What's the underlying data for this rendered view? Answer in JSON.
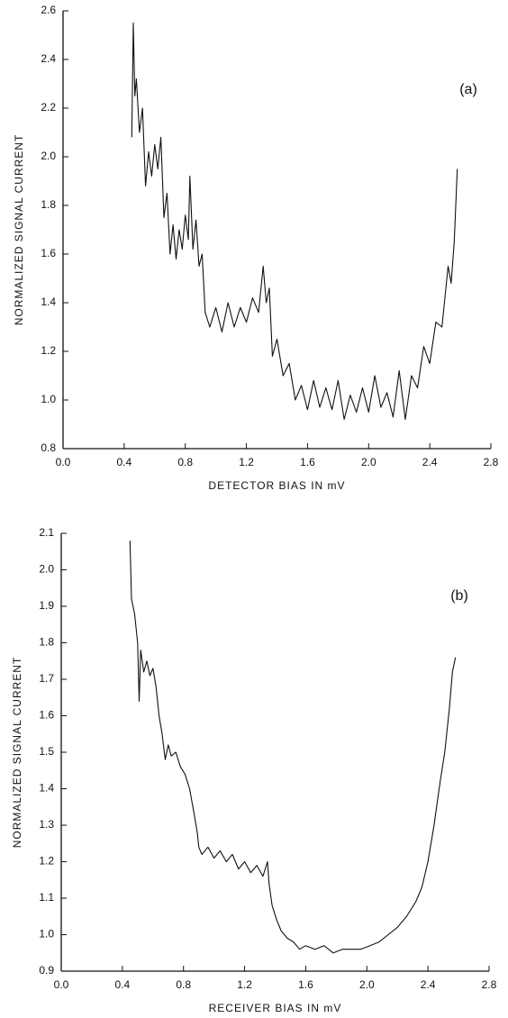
{
  "chart_data": [
    {
      "type": "line",
      "annotation": "(a)",
      "xlabel": "DETECTOR BIAS IN mV",
      "ylabel": "NORMALIZED SIGNAL CURRENT",
      "color": "#111111",
      "xlim": [
        0,
        2.8
      ],
      "ylim": [
        0.8,
        2.6
      ],
      "xticks": [
        {
          "value": 0,
          "label": "0.0"
        },
        0.4,
        0.8,
        1.2,
        1.6,
        {
          "value": 2,
          "label": "2.0"
        },
        2.4,
        2.8
      ],
      "yticks": [
        0.8,
        {
          "value": 1,
          "label": "1.0"
        },
        1.2,
        1.4,
        1.6,
        1.8,
        {
          "value": 2,
          "label": "2.0"
        },
        2.2,
        2.4,
        2.6
      ],
      "x": [
        0.45,
        0.46,
        0.47,
        0.48,
        0.5,
        0.52,
        0.54,
        0.56,
        0.58,
        0.6,
        0.62,
        0.64,
        0.66,
        0.68,
        0.7,
        0.72,
        0.74,
        0.76,
        0.78,
        0.8,
        0.82,
        0.83,
        0.85,
        0.87,
        0.89,
        0.91,
        0.93,
        0.96,
        1.0,
        1.04,
        1.08,
        1.12,
        1.16,
        1.2,
        1.24,
        1.28,
        1.31,
        1.33,
        1.35,
        1.37,
        1.4,
        1.44,
        1.48,
        1.52,
        1.56,
        1.6,
        1.64,
        1.68,
        1.72,
        1.76,
        1.8,
        1.84,
        1.88,
        1.92,
        1.96,
        2.0,
        2.04,
        2.08,
        2.12,
        2.16,
        2.2,
        2.24,
        2.28,
        2.32,
        2.36,
        2.4,
        2.44,
        2.48,
        2.52,
        2.54,
        2.56,
        2.58
      ],
      "values": [
        2.08,
        2.55,
        2.25,
        2.32,
        2.1,
        2.2,
        1.88,
        2.02,
        1.92,
        2.05,
        1.95,
        2.08,
        1.75,
        1.85,
        1.6,
        1.72,
        1.58,
        1.7,
        1.62,
        1.76,
        1.66,
        1.92,
        1.62,
        1.74,
        1.55,
        1.6,
        1.36,
        1.3,
        1.38,
        1.28,
        1.4,
        1.3,
        1.38,
        1.32,
        1.42,
        1.36,
        1.55,
        1.4,
        1.46,
        1.18,
        1.25,
        1.1,
        1.15,
        1.0,
        1.06,
        0.96,
        1.08,
        0.97,
        1.05,
        0.96,
        1.08,
        0.92,
        1.02,
        0.95,
        1.05,
        0.95,
        1.1,
        0.97,
        1.03,
        0.93,
        1.12,
        0.92,
        1.1,
        1.05,
        1.22,
        1.15,
        1.32,
        1.3,
        1.55,
        1.48,
        1.65,
        1.95
      ]
    },
    {
      "type": "line",
      "annotation": "(b)",
      "xlabel": "RECEIVER BIAS IN mV",
      "ylabel": "NORMALIZED SIGNAL CURRENT",
      "color": "#111111",
      "xlim": [
        0,
        2.8
      ],
      "ylim": [
        0.9,
        2.1
      ],
      "xticks": [
        {
          "value": 0,
          "label": "0.0"
        },
        0.4,
        0.8,
        1.2,
        1.6,
        {
          "value": 2,
          "label": "2.0"
        },
        2.4,
        2.8
      ],
      "yticks": [
        0.9,
        {
          "value": 1,
          "label": "1.0"
        },
        1.1,
        1.2,
        1.3,
        1.4,
        1.5,
        1.6,
        1.7,
        1.8,
        1.9,
        {
          "value": 2,
          "label": "2.0"
        },
        2.1
      ],
      "x": [
        0.45,
        0.46,
        0.48,
        0.5,
        0.51,
        0.52,
        0.54,
        0.56,
        0.58,
        0.6,
        0.62,
        0.64,
        0.66,
        0.68,
        0.7,
        0.72,
        0.75,
        0.78,
        0.81,
        0.84,
        0.87,
        0.89,
        0.9,
        0.92,
        0.96,
        1.0,
        1.04,
        1.08,
        1.12,
        1.16,
        1.2,
        1.24,
        1.28,
        1.32,
        1.35,
        1.36,
        1.38,
        1.41,
        1.44,
        1.48,
        1.52,
        1.56,
        1.6,
        1.66,
        1.72,
        1.78,
        1.84,
        1.9,
        1.96,
        2.02,
        2.08,
        2.14,
        2.2,
        2.26,
        2.32,
        2.36,
        2.4,
        2.44,
        2.48,
        2.51,
        2.54,
        2.56,
        2.58
      ],
      "values": [
        2.08,
        1.92,
        1.88,
        1.8,
        1.64,
        1.78,
        1.72,
        1.75,
        1.71,
        1.73,
        1.68,
        1.6,
        1.55,
        1.48,
        1.52,
        1.49,
        1.5,
        1.46,
        1.44,
        1.4,
        1.33,
        1.28,
        1.24,
        1.22,
        1.24,
        1.21,
        1.23,
        1.2,
        1.22,
        1.18,
        1.2,
        1.17,
        1.19,
        1.16,
        1.2,
        1.14,
        1.08,
        1.04,
        1.01,
        0.99,
        0.98,
        0.96,
        0.97,
        0.96,
        0.97,
        0.95,
        0.96,
        0.96,
        0.96,
        0.97,
        0.98,
        1.0,
        1.02,
        1.05,
        1.09,
        1.13,
        1.2,
        1.3,
        1.42,
        1.5,
        1.62,
        1.72,
        1.76
      ]
    }
  ]
}
